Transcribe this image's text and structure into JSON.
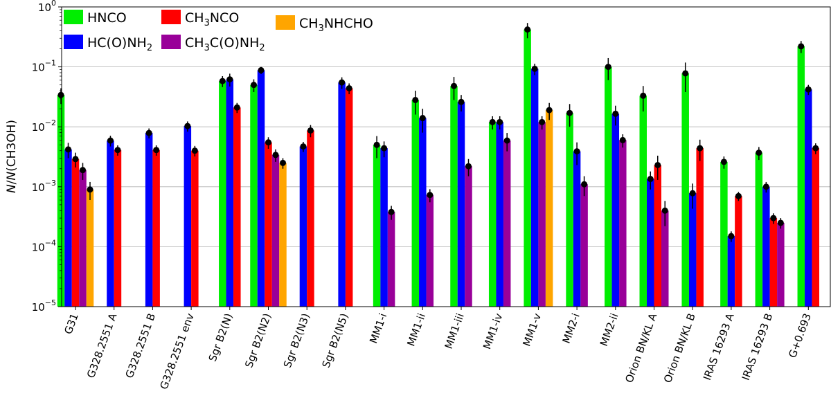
{
  "chart_data": {
    "type": "bar",
    "yscale": "log",
    "ylim": [
      1e-05,
      1
    ],
    "ylabel": {
      "italic": "N",
      "rest": "/",
      "italic2": "N",
      "tail": "(CH3OH)"
    },
    "yticks": [
      {
        "value": 1,
        "base": "10",
        "exp": "0"
      },
      {
        "value": 0.1,
        "base": "10",
        "exp": "−1"
      },
      {
        "value": 0.01,
        "base": "10",
        "exp": "−2"
      },
      {
        "value": 0.001,
        "base": "10",
        "exp": "−3"
      },
      {
        "value": 0.0001,
        "base": "10",
        "exp": "−4"
      },
      {
        "value": 1e-05,
        "base": "10",
        "exp": "−5"
      }
    ],
    "grid": "horizontal",
    "categories": [
      "G31",
      "G328.2551 A",
      "G328.2551 B",
      "G328.2551 env",
      "Sgr B2(N)",
      "Sgr B2(N2)",
      "Sgr B2(N3)",
      "Sgr B2(N5)",
      "MM1-i",
      "MM1-ii",
      "MM1-iii",
      "MM1-iv",
      "MM1-v",
      "MM2-i",
      "MM2-ii",
      "Orion BN/KL A",
      "Orion BN/KL B",
      "IRAS 16293 A",
      "IRAS 16293 B",
      "G+0.693"
    ],
    "series": [
      {
        "name": "HNCO",
        "color": "#00ee00",
        "values": [
          0.034,
          null,
          null,
          null,
          0.058,
          0.05,
          null,
          null,
          0.005,
          0.028,
          0.048,
          0.012,
          0.42,
          0.017,
          0.1,
          0.033,
          0.078,
          0.0026,
          0.0037,
          0.22
        ],
        "errors": [
          0.01,
          null,
          null,
          null,
          0.012,
          0.012,
          null,
          null,
          0.002,
          0.012,
          0.02,
          0.003,
          0.12,
          0.007,
          0.04,
          0.015,
          0.04,
          0.0006,
          0.0009,
          0.05
        ]
      },
      {
        "name": "HC(O)NH2",
        "color": "#0000ff",
        "values": [
          0.0042,
          0.0059,
          0.0079,
          0.0103,
          0.062,
          0.088,
          0.0047,
          0.055,
          0.0044,
          0.014,
          0.026,
          0.012,
          0.093,
          0.0039,
          0.0165,
          0.00135,
          0.00078,
          0.00015,
          0.001,
          0.042
        ],
        "errors": [
          0.0012,
          0.0012,
          0.0015,
          0.002,
          0.015,
          0.012,
          0.0009,
          0.012,
          0.0013,
          0.006,
          0.008,
          0.003,
          0.02,
          0.0016,
          0.006,
          0.00045,
          0.00035,
          3e-05,
          0.0002,
          0.008
        ]
      },
      {
        "name": "CH3NCO",
        "color": "#ff0000",
        "values": [
          0.0029,
          0.0041,
          0.0041,
          0.004,
          0.021,
          0.0055,
          0.0087,
          0.044,
          null,
          null,
          null,
          null,
          null,
          null,
          null,
          0.0023,
          0.0044,
          0.0007,
          0.0003,
          0.0044
        ],
        "errors": [
          0.0008,
          0.0008,
          0.0008,
          0.0008,
          0.004,
          0.0012,
          0.002,
          0.009,
          null,
          null,
          null,
          null,
          null,
          null,
          null,
          0.001,
          0.0017,
          0.00012,
          6e-05,
          0.0009
        ]
      },
      {
        "name": "CH3C(O)NH2",
        "color": "#990099",
        "values": [
          0.0019,
          null,
          null,
          null,
          null,
          0.0034,
          null,
          null,
          0.00038,
          0.00073,
          0.0022,
          0.0059,
          0.012,
          0.0011,
          0.006,
          0.0004,
          null,
          null,
          0.00025,
          null
        ],
        "errors": [
          0.0006,
          null,
          null,
          null,
          null,
          0.0008,
          null,
          null,
          0.0001,
          0.00018,
          0.0007,
          0.002,
          0.003,
          0.0004,
          0.0015,
          0.00018,
          null,
          null,
          5e-05,
          null
        ]
      },
      {
        "name": "CH3NHCHO",
        "color": "#ffa500",
        "values": [
          0.0009,
          null,
          null,
          null,
          null,
          0.0025,
          null,
          null,
          null,
          null,
          null,
          null,
          0.019,
          null,
          null,
          null,
          null,
          null,
          null,
          null
        ],
        "errors": [
          0.0003,
          null,
          null,
          null,
          null,
          0.0005,
          null,
          null,
          null,
          null,
          null,
          null,
          0.006,
          null,
          null,
          null,
          null,
          null,
          null,
          null
        ]
      }
    ],
    "legend": {
      "placement": "top-left",
      "entries": [
        {
          "main": "HNCO"
        },
        {
          "main": "HC(O)NH",
          "sub": "2"
        },
        {
          "main": "CH",
          "sub": "3",
          "tail": "NCO"
        },
        {
          "main": "CH",
          "sub": "3",
          "tail": "C(O)NH",
          "sub2": "2"
        },
        {
          "main": "CH",
          "sub": "3",
          "tail": "NHCHO"
        }
      ]
    }
  }
}
